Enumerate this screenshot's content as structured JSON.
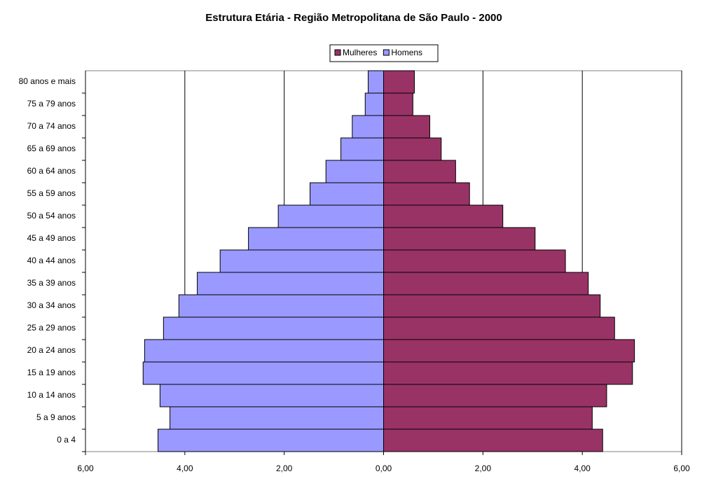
{
  "chart_data": {
    "type": "bar",
    "orientation": "horizontal",
    "title": "Estrutura Etária - Região Metropolitana de São Paulo - 2000",
    "categories": [
      "0 a 4",
      "5 a 9 anos",
      "10 a 14 anos",
      "15 a 19 anos",
      "20 a 24 anos",
      "25 a 29 anos",
      "30 a 34 anos",
      "35 a 39 anos",
      "40 a 44 anos",
      "45 a 49 anos",
      "50 a 54 anos",
      "55 a 59 anos",
      "60 a 64 anos",
      "65 a 69 anos",
      "70 a 74 anos",
      "75 a 79 anos",
      "80 anos e mais"
    ],
    "series": [
      {
        "name": "Mulheres",
        "color": "#993366",
        "values": [
          4.41,
          4.2,
          4.49,
          5.01,
          5.05,
          4.65,
          4.36,
          4.12,
          3.66,
          3.05,
          2.4,
          1.73,
          1.45,
          1.16,
          0.93,
          0.59,
          0.62
        ]
      },
      {
        "name": "Homens",
        "color": "#9999ff",
        "values": [
          -4.54,
          -4.3,
          -4.5,
          -4.84,
          -4.81,
          -4.43,
          -4.12,
          -3.75,
          -3.29,
          -2.72,
          -2.12,
          -1.48,
          -1.16,
          -0.86,
          -0.63,
          -0.37,
          -0.31
        ]
      }
    ],
    "xlim": [
      -6,
      6
    ],
    "xticks": [
      {
        "value": -6,
        "label": "6,00"
      },
      {
        "value": -4,
        "label": "4,00"
      },
      {
        "value": -2,
        "label": "2,00"
      },
      {
        "value": 0,
        "label": "0,00"
      },
      {
        "value": 2,
        "label": "2,00"
      },
      {
        "value": 4,
        "label": "4,00"
      },
      {
        "value": 6,
        "label": "6,00"
      }
    ],
    "grid": true,
    "legend": "top"
  }
}
